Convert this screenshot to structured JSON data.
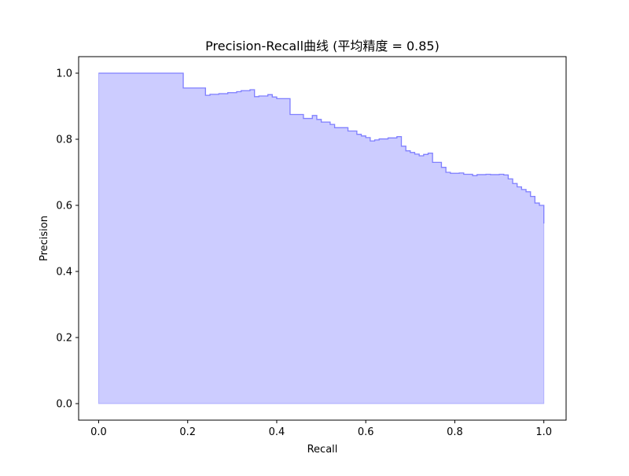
{
  "chart_data": {
    "type": "area",
    "title": "Precision-Recall曲线 (平均精度 = 0.85)",
    "xlabel": "Recall",
    "ylabel": "Precision",
    "xlim": [
      -0.045,
      1.05
    ],
    "ylim": [
      -0.05,
      1.05
    ],
    "xticks": [
      0.0,
      0.2,
      0.4,
      0.6,
      0.8,
      1.0
    ],
    "xtick_labels": [
      "0.0",
      "0.2",
      "0.4",
      "0.6",
      "0.8",
      "1.0"
    ],
    "yticks": [
      0.0,
      0.2,
      0.4,
      0.6,
      0.8,
      1.0
    ],
    "ytick_labels": [
      "0.0",
      "0.2",
      "0.4",
      "0.6",
      "0.8",
      "1.0"
    ],
    "grid": false,
    "legend": false,
    "step_where": "post",
    "colors": {
      "fill": "#ccccff",
      "line": "#8080ff"
    },
    "series": [
      {
        "recall": [
          0.0,
          0.19,
          0.24,
          0.25,
          0.27,
          0.29,
          0.31,
          0.32,
          0.34,
          0.35,
          0.36,
          0.38,
          0.39,
          0.4,
          0.43,
          0.46,
          0.48,
          0.49,
          0.5,
          0.52,
          0.53,
          0.56,
          0.58,
          0.59,
          0.6,
          0.61,
          0.62,
          0.63,
          0.65,
          0.67,
          0.68,
          0.69,
          0.7,
          0.71,
          0.72,
          0.73,
          0.74,
          0.75,
          0.77,
          0.78,
          0.79,
          0.81,
          0.82,
          0.84,
          0.85,
          0.87,
          0.88,
          0.9,
          0.91,
          0.92,
          0.93,
          0.94,
          0.95,
          0.96,
          0.97,
          0.98,
          0.99,
          1.0
        ],
        "precision": [
          1.0,
          0.955,
          0.933,
          0.936,
          0.938,
          0.941,
          0.944,
          0.947,
          0.95,
          0.929,
          0.931,
          0.935,
          0.928,
          0.923,
          0.875,
          0.863,
          0.872,
          0.86,
          0.852,
          0.845,
          0.835,
          0.825,
          0.815,
          0.81,
          0.805,
          0.795,
          0.798,
          0.801,
          0.804,
          0.808,
          0.779,
          0.765,
          0.76,
          0.755,
          0.75,
          0.754,
          0.758,
          0.73,
          0.715,
          0.7,
          0.697,
          0.698,
          0.694,
          0.69,
          0.693,
          0.694,
          0.693,
          0.694,
          0.692,
          0.68,
          0.666,
          0.656,
          0.648,
          0.641,
          0.627,
          0.607,
          0.6,
          0.545
        ]
      }
    ]
  }
}
